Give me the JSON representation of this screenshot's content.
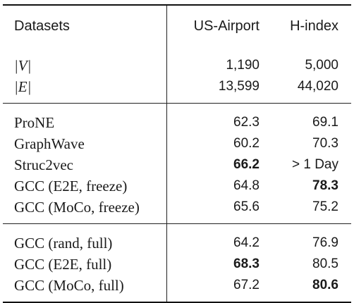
{
  "table": {
    "header": {
      "col0": "Datasets",
      "col1": "US-Airport",
      "col2": "H-index"
    },
    "stats": [
      {
        "label": "|V|",
        "us_airport": "1,190",
        "h_index": "5,000"
      },
      {
        "label": "|E|",
        "us_airport": "13,599",
        "h_index": "44,020"
      }
    ],
    "group1": [
      {
        "label": "ProNE",
        "us_airport": "62.3",
        "h_index": "69.1",
        "bold_us": false,
        "bold_h": false
      },
      {
        "label": "GraphWave",
        "us_airport": "60.2",
        "h_index": "70.3",
        "bold_us": false,
        "bold_h": false
      },
      {
        "label": "Struc2vec",
        "us_airport": "66.2",
        "h_index": "> 1 Day",
        "bold_us": true,
        "bold_h": false
      },
      {
        "label": "GCC (E2E, freeze)",
        "us_airport": "64.8",
        "h_index": "78.3",
        "bold_us": false,
        "bold_h": true
      },
      {
        "label": "GCC (MoCo, freeze)",
        "us_airport": "65.6",
        "h_index": "75.2",
        "bold_us": false,
        "bold_h": false
      }
    ],
    "group2": [
      {
        "label": "GCC (rand, full)",
        "us_airport": "64.2",
        "h_index": "76.9",
        "bold_us": false,
        "bold_h": false
      },
      {
        "label": "GCC (E2E, full)",
        "us_airport": "68.3",
        "h_index": "80.5",
        "bold_us": true,
        "bold_h": false
      },
      {
        "label": "GCC (MoCo, full)",
        "us_airport": "67.2",
        "h_index": "80.6",
        "bold_us": false,
        "bold_h": true
      }
    ]
  }
}
